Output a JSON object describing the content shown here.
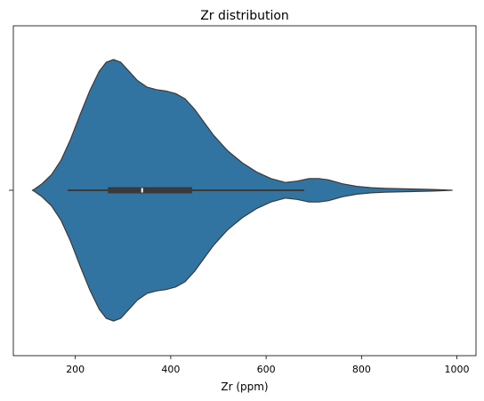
{
  "chart_data": {
    "type": "violin",
    "title": "Zr distribution",
    "xlabel": "Zr (ppm)",
    "ylabel": "",
    "xlim": [
      70,
      1040
    ],
    "xticks": [
      200,
      400,
      600,
      800,
      1000
    ],
    "grid": false,
    "legend": "none",
    "colors": {
      "violin_fill": "#3274a1",
      "violin_edge": "#3a3a3a",
      "box": "#3a3a3a",
      "median": "#ffffff"
    },
    "density_profile": [
      [
        110,
        0.0
      ],
      [
        115,
        0.01
      ],
      [
        130,
        0.05
      ],
      [
        150,
        0.12
      ],
      [
        170,
        0.23
      ],
      [
        190,
        0.39
      ],
      [
        210,
        0.58
      ],
      [
        230,
        0.76
      ],
      [
        250,
        0.91
      ],
      [
        265,
        0.98
      ],
      [
        280,
        1.0
      ],
      [
        295,
        0.98
      ],
      [
        310,
        0.92
      ],
      [
        330,
        0.84
      ],
      [
        350,
        0.79
      ],
      [
        370,
        0.77
      ],
      [
        390,
        0.76
      ],
      [
        410,
        0.74
      ],
      [
        430,
        0.7
      ],
      [
        450,
        0.62
      ],
      [
        470,
        0.52
      ],
      [
        490,
        0.42
      ],
      [
        520,
        0.3
      ],
      [
        550,
        0.21
      ],
      [
        580,
        0.14
      ],
      [
        610,
        0.09
      ],
      [
        640,
        0.06
      ],
      [
        665,
        0.07
      ],
      [
        690,
        0.09
      ],
      [
        710,
        0.09
      ],
      [
        730,
        0.08
      ],
      [
        760,
        0.05
      ],
      [
        790,
        0.03
      ],
      [
        820,
        0.02
      ],
      [
        850,
        0.015
      ],
      [
        900,
        0.01
      ],
      [
        950,
        0.006
      ],
      [
        990,
        0.0
      ]
    ],
    "box": {
      "whisker_low": 184,
      "q1": 268,
      "median": 340,
      "q3": 445,
      "whisker_high": 680
    }
  }
}
